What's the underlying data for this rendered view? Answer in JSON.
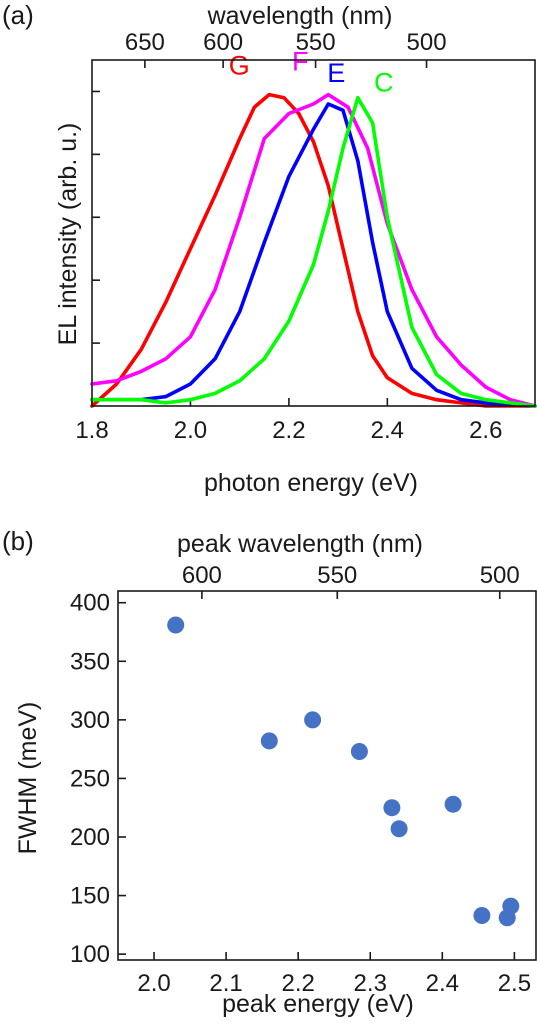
{
  "chart_data": [
    {
      "panel_label": "(a)",
      "type": "line",
      "xlabel": "photon energy (eV)",
      "ylabel": "EL intensity (arb. u.)",
      "top_axis_label": "wavelength (nm)",
      "xlim": [
        1.8,
        2.7
      ],
      "x_ticks": [
        1.8,
        2.0,
        2.2,
        2.4,
        2.6
      ],
      "x_tick_labels": [
        "1.8",
        "2.0",
        "2.2",
        "2.4",
        "2.6"
      ],
      "ylim": [
        0,
        1.1
      ],
      "y_ticks": [
        0.2,
        0.4,
        0.6,
        0.8,
        1.0
      ],
      "top_ticks": [
        650,
        600,
        550,
        500
      ],
      "top_tick_labels": [
        "650",
        "600",
        "550",
        "500"
      ],
      "grid": false,
      "series": [
        {
          "name": "G",
          "color": "#ff0000",
          "x": [
            1.8,
            1.85,
            1.9,
            1.95,
            2.0,
            2.05,
            2.1,
            2.13,
            2.16,
            2.19,
            2.22,
            2.25,
            2.28,
            2.31,
            2.34,
            2.37,
            2.4,
            2.45,
            2.5,
            2.55,
            2.6,
            2.7
          ],
          "y": [
            0.0,
            0.07,
            0.18,
            0.33,
            0.5,
            0.67,
            0.85,
            0.95,
            0.99,
            0.98,
            0.93,
            0.84,
            0.7,
            0.5,
            0.3,
            0.16,
            0.09,
            0.04,
            0.02,
            0.01,
            0.0,
            0.0
          ]
        },
        {
          "name": "F",
          "color": "#ff00ff",
          "x": [
            1.8,
            1.85,
            1.9,
            1.95,
            2.0,
            2.05,
            2.1,
            2.15,
            2.2,
            2.25,
            2.28,
            2.32,
            2.36,
            2.4,
            2.45,
            2.5,
            2.55,
            2.6,
            2.65,
            2.7
          ],
          "y": [
            0.07,
            0.08,
            0.11,
            0.15,
            0.22,
            0.37,
            0.6,
            0.85,
            0.93,
            0.96,
            0.99,
            0.95,
            0.82,
            0.58,
            0.37,
            0.22,
            0.13,
            0.06,
            0.02,
            0.0
          ]
        },
        {
          "name": "E",
          "color": "#0000ff",
          "x": [
            1.8,
            1.85,
            1.9,
            1.95,
            2.0,
            2.05,
            2.1,
            2.15,
            2.2,
            2.25,
            2.28,
            2.31,
            2.34,
            2.37,
            2.4,
            2.45,
            2.5,
            2.55,
            2.6,
            2.7
          ],
          "y": [
            0.02,
            0.02,
            0.02,
            0.03,
            0.07,
            0.15,
            0.3,
            0.52,
            0.73,
            0.88,
            0.96,
            0.94,
            0.78,
            0.52,
            0.3,
            0.12,
            0.05,
            0.02,
            0.01,
            0.0
          ]
        },
        {
          "name": "C",
          "color": "#00ff00",
          "x": [
            1.8,
            1.85,
            1.9,
            1.95,
            2.0,
            2.05,
            2.1,
            2.15,
            2.2,
            2.25,
            2.28,
            2.31,
            2.34,
            2.37,
            2.4,
            2.45,
            2.5,
            2.55,
            2.6,
            2.7
          ],
          "y": [
            0.02,
            0.02,
            0.02,
            0.01,
            0.02,
            0.04,
            0.08,
            0.15,
            0.27,
            0.45,
            0.62,
            0.82,
            0.98,
            0.9,
            0.6,
            0.25,
            0.1,
            0.04,
            0.02,
            0.0
          ]
        }
      ]
    },
    {
      "panel_label": "(b)",
      "type": "scatter",
      "xlabel": "peak energy (eV)",
      "ylabel": "FWHM (meV)",
      "top_axis_label": "peak wavelength (nm)",
      "xlim": [
        1.95,
        2.53
      ],
      "x_ticks": [
        2.0,
        2.1,
        2.2,
        2.3,
        2.4,
        2.5
      ],
      "x_tick_labels": [
        "2.0",
        "2.1",
        "2.2",
        "2.3",
        "2.4",
        "2.5"
      ],
      "ylim": [
        95,
        410
      ],
      "y_ticks": [
        100,
        150,
        200,
        250,
        300,
        350,
        400
      ],
      "y_tick_labels": [
        "100",
        "150",
        "200",
        "250",
        "300",
        "350",
        "400"
      ],
      "top_ticks": [
        600,
        550,
        500
      ],
      "top_tick_labels": [
        "600",
        "550",
        "500"
      ],
      "grid": false,
      "marker_color": "#4472c4",
      "x": [
        2.03,
        2.16,
        2.22,
        2.285,
        2.33,
        2.34,
        2.415,
        2.455,
        2.49,
        2.495
      ],
      "y": [
        381,
        282,
        300,
        273,
        225,
        207,
        228,
        133,
        131,
        141
      ]
    }
  ]
}
